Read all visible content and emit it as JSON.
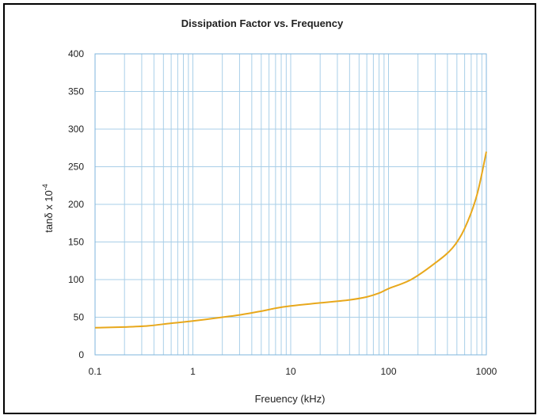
{
  "chart_data": {
    "type": "line",
    "title": "Dissipation Factor vs. Frequency",
    "xlabel": "Freuency (kHz)",
    "ylabel": "tanδ x 10",
    "ylabel_superscript": "-4",
    "x_scale": "log",
    "xlim": [
      0.1,
      1000
    ],
    "ylim": [
      0,
      400
    ],
    "xticks": [
      "0.1",
      "1",
      "10",
      "100",
      "1000"
    ],
    "yticks": [
      "0",
      "50",
      "100",
      "150",
      "200",
      "250",
      "300",
      "350",
      "400"
    ],
    "grid": true,
    "legend": "none",
    "series": [
      {
        "color": "#e8a81c",
        "x": [
          0.1,
          0.2,
          0.35,
          0.6,
          1,
          2,
          3,
          5,
          7,
          10,
          20,
          40,
          60,
          80,
          100,
          170,
          300,
          450,
          600,
          800,
          1000
        ],
        "y": [
          36,
          37,
          38.5,
          42,
          45,
          50,
          53,
          58,
          62,
          65,
          69,
          73,
          77,
          82,
          88,
          100,
          122,
          142,
          168,
          212,
          270
        ]
      }
    ]
  },
  "colors": {
    "grid": "#a9cfe8",
    "plot_border": "#7fb6dd",
    "line": "#e8a81c"
  }
}
